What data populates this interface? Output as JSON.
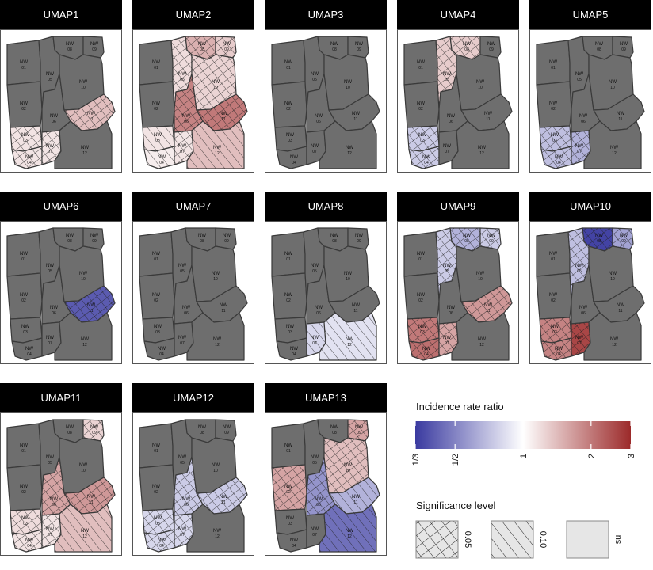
{
  "chart_data": {
    "type": "choropleth-map-small-multiples",
    "regions": [
      "NW 01",
      "NW 02",
      "NW 03",
      "NW 04",
      "NW 05",
      "NW 06",
      "NW 07",
      "NW 08",
      "NW 09",
      "NW 10",
      "NW 11",
      "NW 12"
    ],
    "colorscale": {
      "title": "Incidence rate ratio",
      "scale": "log",
      "ticks": [
        "1/3",
        "1/2",
        "1",
        "2",
        "3"
      ],
      "tick_values": [
        0.3333,
        0.5,
        1,
        2,
        3
      ],
      "low_color": "#3a3aa0",
      "mid_color": "#ffffff",
      "high_color": "#9c2a2a",
      "ns_color": "#6e6e6e"
    },
    "significance": {
      "title": "Significance level",
      "levels": [
        {
          "label": "0.05",
          "pattern": "crosshatch"
        },
        {
          "label": "0.10",
          "pattern": "hatch"
        },
        {
          "label": "ns",
          "pattern": "none"
        }
      ]
    },
    "panels": [
      {
        "title": "UMAP1",
        "regions": {
          "NW 11": {
            "irr": 1.4,
            "sig": "0.05"
          },
          "NW 03": {
            "irr": 1.15,
            "sig": "0.05"
          },
          "NW 04": {
            "irr": 1.15,
            "sig": "0.05"
          },
          "NW 07": {
            "irr": 1.15,
            "sig": "0.05"
          }
        }
      },
      {
        "title": "UMAP2",
        "regions": {
          "NW 08": {
            "irr": 1.5,
            "sig": "0.05"
          },
          "NW 09": {
            "irr": 1.3,
            "sig": "0.05"
          },
          "NW 05": {
            "irr": 1.2,
            "sig": "0.05"
          },
          "NW 10": {
            "irr": 1.25,
            "sig": "0.05"
          },
          "NW 06": {
            "irr": 1.9,
            "sig": "0.05"
          },
          "NW 11": {
            "irr": 2.0,
            "sig": "0.05"
          },
          "NW 03": {
            "irr": 1.15,
            "sig": "0.10"
          },
          "NW 04": {
            "irr": 1.1,
            "sig": "0.10"
          },
          "NW 07": {
            "irr": 1.15,
            "sig": "0.05"
          },
          "NW 12": {
            "irr": 1.4,
            "sig": "0.10"
          }
        }
      },
      {
        "title": "UMAP3",
        "regions": {}
      },
      {
        "title": "UMAP4",
        "regions": {
          "NW 08": {
            "irr": 1.3,
            "sig": "0.05"
          },
          "NW 05": {
            "irr": 1.3,
            "sig": "0.05"
          },
          "NW 03": {
            "irr": 0.75,
            "sig": "0.05"
          },
          "NW 04": {
            "irr": 0.75,
            "sig": "0.05"
          }
        }
      },
      {
        "title": "UMAP5",
        "regions": {
          "NW 03": {
            "irr": 0.7,
            "sig": "0.05"
          },
          "NW 04": {
            "irr": 0.7,
            "sig": "0.05"
          },
          "NW 07": {
            "irr": 0.65,
            "sig": "0.05"
          }
        }
      },
      {
        "title": "UMAP6",
        "regions": {
          "NW 11": {
            "irr": 0.4,
            "sig": "0.05"
          }
        }
      },
      {
        "title": "UMAP7",
        "regions": {}
      },
      {
        "title": "UMAP8",
        "regions": {
          "NW 07": {
            "irr": 0.8,
            "sig": "0.10"
          },
          "NW 12": {
            "irr": 0.85,
            "sig": "0.10"
          }
        }
      },
      {
        "title": "UMAP9",
        "regions": {
          "NW 08": {
            "irr": 0.65,
            "sig": "0.05"
          },
          "NW 09": {
            "irr": 0.75,
            "sig": "0.05"
          },
          "NW 05": {
            "irr": 0.75,
            "sig": "0.05"
          },
          "NW 11": {
            "irr": 1.7,
            "sig": "0.05"
          },
          "NW 03": {
            "irr": 2.0,
            "sig": "0.05"
          },
          "NW 04": {
            "irr": 2.1,
            "sig": "0.05"
          },
          "NW 07": {
            "irr": 1.6,
            "sig": "0.05"
          }
        }
      },
      {
        "title": "UMAP10",
        "regions": {
          "NW 08": {
            "irr": 0.35,
            "sig": "0.05"
          },
          "NW 09": {
            "irr": 0.6,
            "sig": "0.05"
          },
          "NW 05": {
            "irr": 0.7,
            "sig": "0.05"
          },
          "NW 03": {
            "irr": 1.9,
            "sig": "0.05"
          },
          "NW 04": {
            "irr": 1.9,
            "sig": "0.05"
          },
          "NW 07": {
            "irr": 2.6,
            "sig": "0.05"
          }
        }
      },
      {
        "title": "UMAP11",
        "regions": {
          "NW 09": {
            "irr": 1.25,
            "sig": "0.05"
          },
          "NW 06": {
            "irr": 1.6,
            "sig": "0.05"
          },
          "NW 11": {
            "irr": 1.7,
            "sig": "0.05"
          },
          "NW 03": {
            "irr": 1.2,
            "sig": "0.05"
          },
          "NW 04": {
            "irr": 1.15,
            "sig": "0.05"
          },
          "NW 07": {
            "irr": 1.15,
            "sig": "0.05"
          },
          "NW 12": {
            "irr": 1.4,
            "sig": "0.10"
          }
        }
      },
      {
        "title": "UMAP12",
        "regions": {
          "NW 06": {
            "irr": 0.75,
            "sig": "0.05"
          },
          "NW 11": {
            "irr": 0.75,
            "sig": "0.05"
          },
          "NW 03": {
            "irr": 0.8,
            "sig": "0.05"
          },
          "NW 04": {
            "irr": 0.8,
            "sig": "0.05"
          },
          "NW 07": {
            "irr": 0.8,
            "sig": "0.05"
          }
        }
      },
      {
        "title": "UMAP13",
        "regions": {
          "NW 09": {
            "irr": 1.6,
            "sig": "0.05"
          },
          "NW 10": {
            "irr": 1.4,
            "sig": "0.05"
          },
          "NW 02": {
            "irr": 1.6,
            "sig": "0.05"
          },
          "NW 06": {
            "irr": 0.55,
            "sig": "0.05"
          },
          "NW 11": {
            "irr": 0.65,
            "sig": "0.10"
          },
          "NW 12": {
            "irr": 0.45,
            "sig": "0.10"
          }
        }
      }
    ]
  }
}
